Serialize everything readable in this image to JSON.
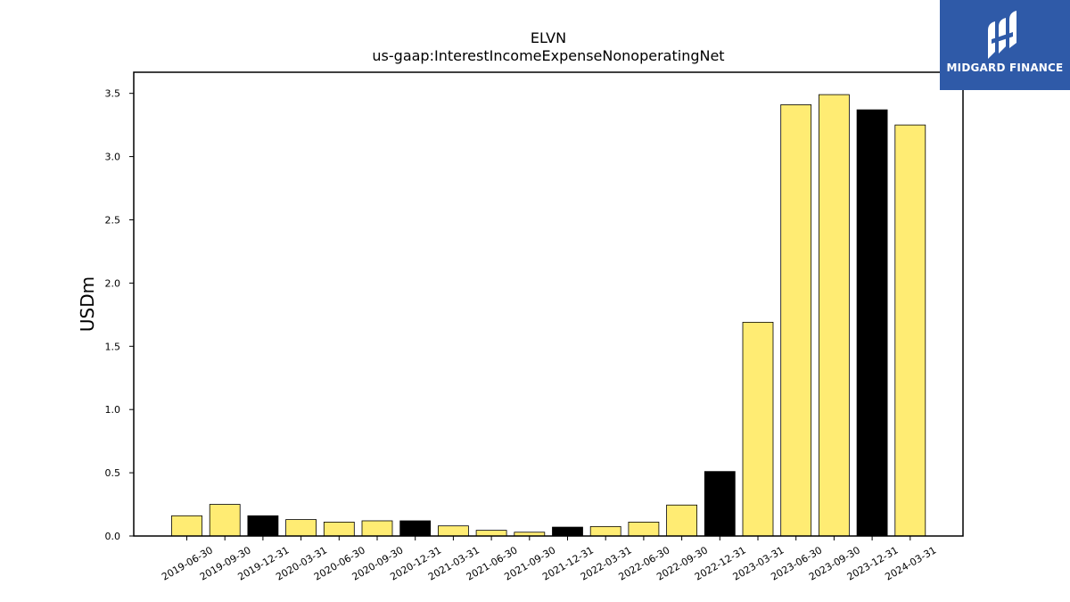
{
  "chart_data": {
    "type": "bar",
    "title": "ELVN",
    "subtitle": "us-gaap:InterestIncomeExpenseNonoperatingNet",
    "ylabel": "USDm",
    "xlabel": "",
    "ylim": [
      0,
      3.667
    ],
    "yticks": [
      0.0,
      0.5,
      1.0,
      1.5,
      2.0,
      2.5,
      3.0,
      3.5
    ],
    "categories": [
      "2019-06-30",
      "2019-09-30",
      "2019-12-31",
      "2020-03-31",
      "2020-06-30",
      "2020-09-30",
      "2020-12-31",
      "2021-03-31",
      "2021-06-30",
      "2021-09-30",
      "2021-12-31",
      "2022-03-31",
      "2022-06-30",
      "2022-09-30",
      "2022-12-31",
      "2023-03-31",
      "2023-06-30",
      "2023-09-30",
      "2023-12-31",
      "2024-03-31"
    ],
    "values": [
      0.16,
      0.25,
      0.16,
      0.13,
      0.11,
      0.12,
      0.12,
      0.08,
      0.045,
      0.03,
      0.07,
      0.075,
      0.11,
      0.245,
      0.51,
      1.69,
      3.41,
      3.49,
      3.37,
      3.25
    ],
    "bar_colors": [
      "#ffec73",
      "#ffec73",
      "#000000",
      "#ffec73",
      "#ffec73",
      "#ffec73",
      "#000000",
      "#ffec73",
      "#ffec73",
      "#ffec73",
      "#000000",
      "#ffec73",
      "#ffec73",
      "#ffec73",
      "#000000",
      "#ffec73",
      "#ffec73",
      "#ffec73",
      "#000000",
      "#ffec73"
    ],
    "grid": false,
    "legend": "none"
  },
  "logo": {
    "text": "MIDGARD FINANCE",
    "background": "#2f5aa8"
  }
}
